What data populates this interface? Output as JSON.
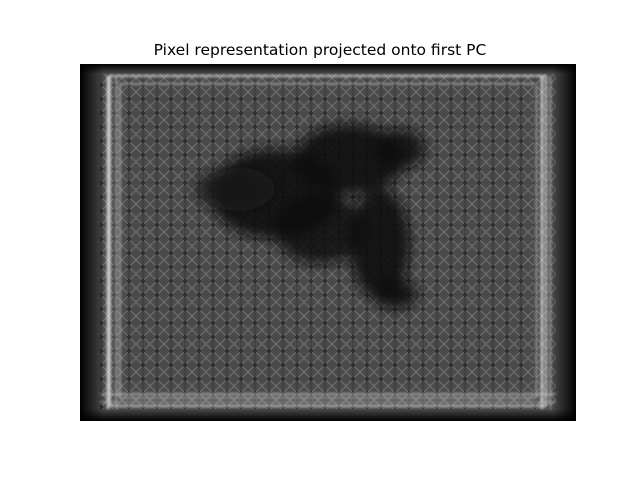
{
  "figure": {
    "title": "Pixel representation projected onto first PC"
  },
  "image": {
    "description_icon": "grayscale-projection-image",
    "colormap": "gray",
    "colors": {
      "background": "#ffffff",
      "dark": "#0a0a0a",
      "mid": "#5a5a5a",
      "light": "#d8d8d8"
    }
  }
}
